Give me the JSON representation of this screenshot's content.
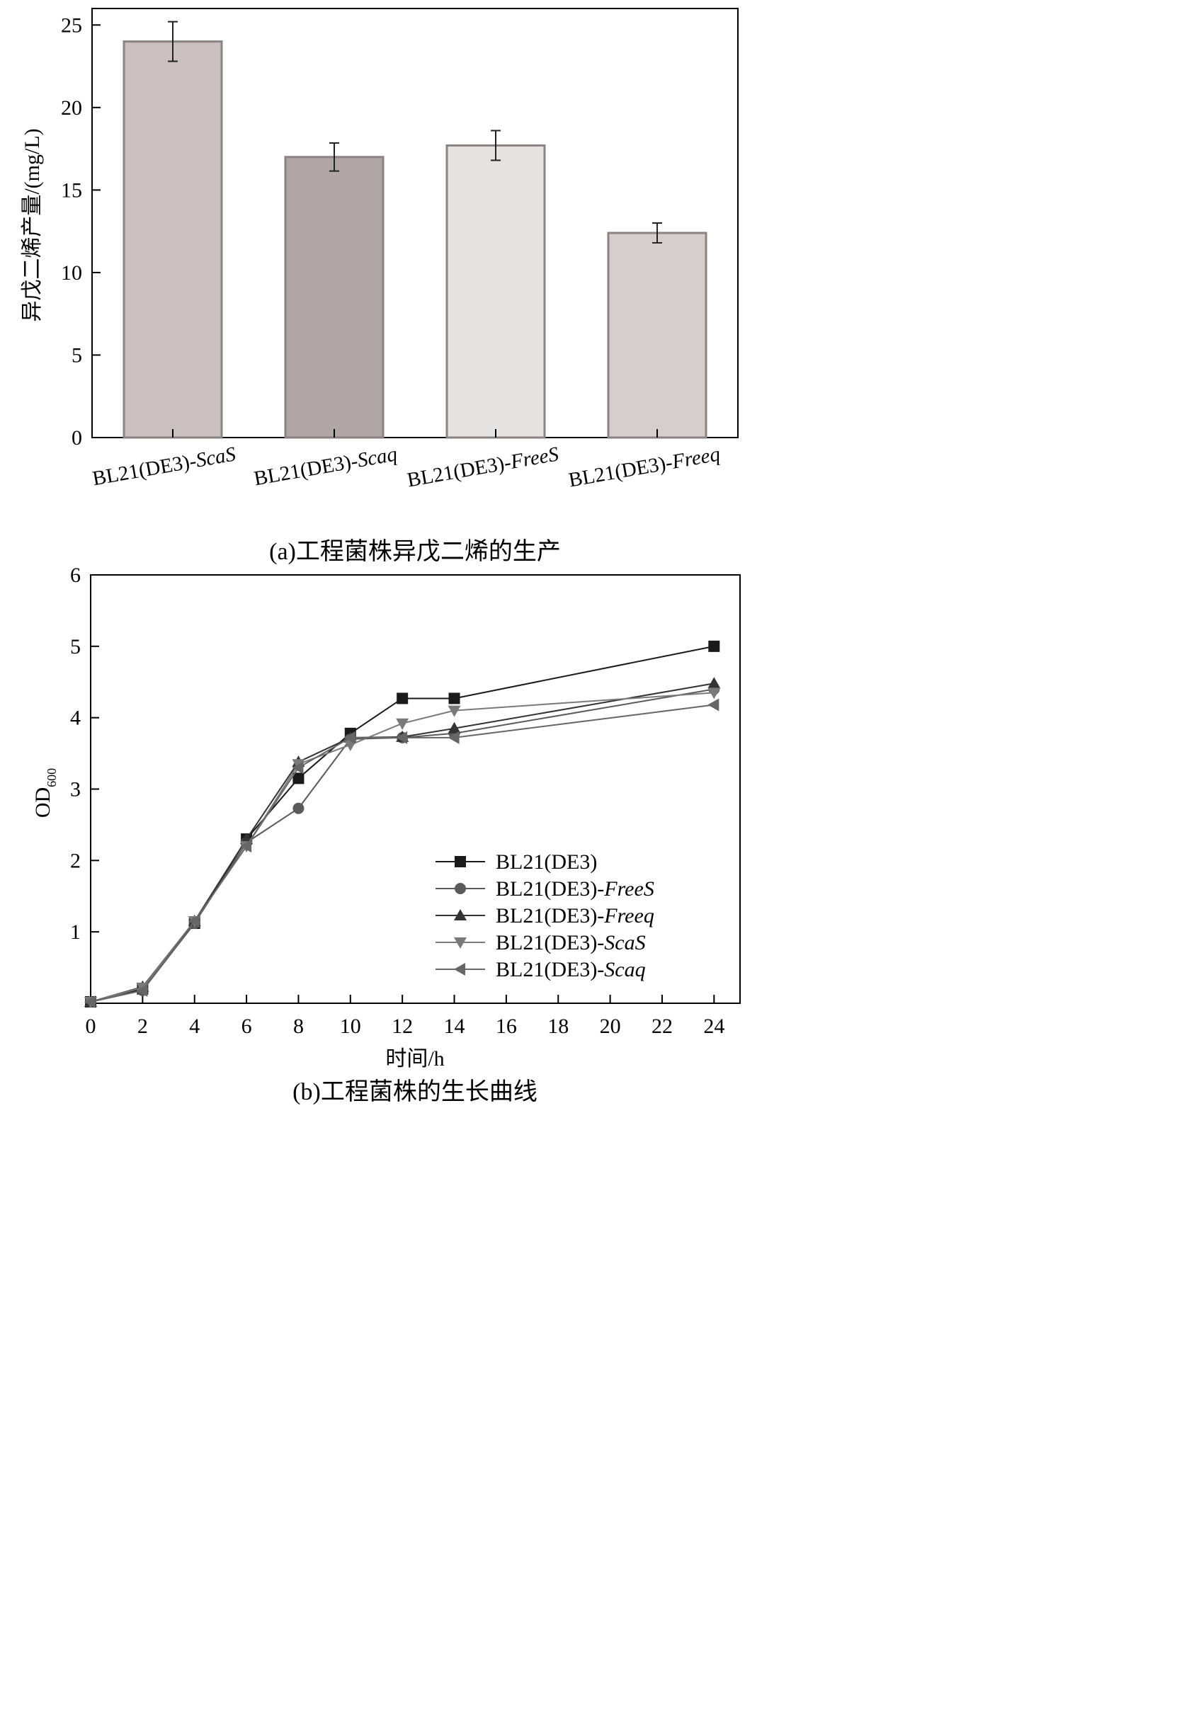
{
  "chart_data": [
    {
      "type": "bar",
      "caption": "(a)工程菌株异戊二烯的生产",
      "ylabel": "异戊二烯产量/(mg/L)",
      "ylim": [
        0,
        26
      ],
      "yticks": [
        0,
        5,
        10,
        15,
        20,
        25
      ],
      "categories": [
        {
          "prefix": "BL21(DE3)-",
          "italic": "ScaS"
        },
        {
          "prefix": "BL21(DE3)-",
          "italic": "Scaq"
        },
        {
          "prefix": "BL21(DE3)-",
          "italic": "FreeS"
        },
        {
          "prefix": "BL21(DE3)-",
          "italic": "Freeq"
        }
      ],
      "values": [
        24.0,
        17.0,
        17.7,
        12.4
      ],
      "errors": [
        1.2,
        0.85,
        0.9,
        0.6
      ],
      "colors": [
        "#c9c0bf",
        "#afa6a5",
        "#e6e4e3",
        "#d6cecd"
      ],
      "edge_color": "#8a8382"
    },
    {
      "type": "line",
      "caption": "(b)工程菌株的生长曲线",
      "xlabel": "时间/h",
      "ylabel_main": "OD",
      "ylabel_sub": "600",
      "xlim": [
        0,
        25
      ],
      "ylim": [
        0,
        6
      ],
      "xticks": [
        0,
        2,
        4,
        6,
        8,
        10,
        12,
        14,
        16,
        18,
        20,
        22,
        24
      ],
      "yticks": [
        1,
        2,
        3,
        4,
        5,
        6
      ],
      "x": [
        0,
        2,
        4,
        6,
        8,
        10,
        12,
        14,
        24
      ],
      "series": [
        {
          "prefix": "BL21(DE3)",
          "italic": "",
          "marker": "square",
          "color": "#1a1a1a",
          "values": [
            0.02,
            0.2,
            1.12,
            2.3,
            3.15,
            3.78,
            4.27,
            4.27,
            5.0
          ]
        },
        {
          "prefix": "BL21(DE3)-",
          "italic": "FreeS",
          "marker": "circle",
          "color": "#5a5a5a",
          "values": [
            0.02,
            0.18,
            1.12,
            2.25,
            2.73,
            3.7,
            3.72,
            3.78,
            4.4
          ]
        },
        {
          "prefix": "BL21(DE3)-",
          "italic": "Freeq",
          "marker": "triangle-up",
          "color": "#333333",
          "values": [
            0.02,
            0.23,
            1.15,
            2.3,
            3.38,
            3.72,
            3.73,
            3.85,
            4.48
          ]
        },
        {
          "prefix": "BL21(DE3)-",
          "italic": "ScaS",
          "marker": "triangle-down",
          "color": "#7a7a7a",
          "values": [
            0.02,
            0.22,
            1.15,
            2.2,
            3.35,
            3.62,
            3.92,
            4.1,
            4.35
          ]
        },
        {
          "prefix": "BL21(DE3)-",
          "italic": "Scaq",
          "marker": "triangle-left",
          "color": "#666666",
          "values": [
            0.02,
            0.18,
            1.15,
            2.2,
            3.3,
            3.72,
            3.72,
            3.72,
            4.18
          ]
        }
      ],
      "legend_position": "bottom-right"
    }
  ]
}
